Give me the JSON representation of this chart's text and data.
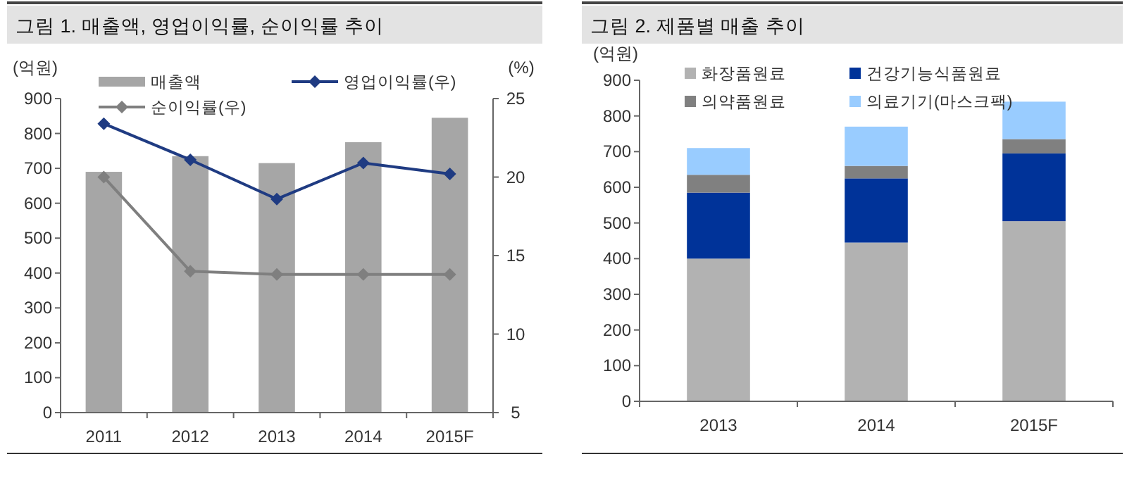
{
  "chart_data": [
    {
      "type": "bar",
      "title": "그림 1. 매출액, 영업이익률, 순이익률 추이",
      "ylabel": "(억원)",
      "y2label": "(%)",
      "categories": [
        "2011",
        "2012",
        "2013",
        "2014",
        "2015F"
      ],
      "series": [
        {
          "name": "매출액",
          "color": "#a6a6a6",
          "values": [
            690,
            735,
            715,
            775,
            845
          ]
        },
        {
          "name": "영업이익률(우)",
          "type": "line",
          "axis": "y2",
          "color": "#1f3b82",
          "values": [
            23.4,
            21.1,
            18.6,
            20.9,
            20.2
          ]
        },
        {
          "name": "순이익률(우)",
          "type": "line",
          "axis": "y2",
          "color": "#7f7f7f",
          "values": [
            20.0,
            14.0,
            13.8,
            13.8,
            13.8
          ]
        }
      ],
      "ylim": [
        0,
        900
      ],
      "yticks": [
        0,
        100,
        200,
        300,
        400,
        500,
        600,
        700,
        800,
        900
      ],
      "y2lim": [
        5,
        25
      ],
      "y2ticks": [
        5,
        10,
        15,
        20,
        25
      ],
      "legend": "top",
      "marker": "diamond"
    },
    {
      "type": "bar",
      "title": "그림 2. 제품별 매출 추이",
      "ylabel": "(억원)",
      "categories": [
        "2013",
        "2014",
        "2015F"
      ],
      "stacked": true,
      "series": [
        {
          "name": "화장품원료",
          "color": "#b2b2b2",
          "values": [
            400,
            445,
            505
          ]
        },
        {
          "name": "건강기능식품원료",
          "color": "#003399",
          "values": [
            185,
            180,
            190
          ]
        },
        {
          "name": "의약품원료",
          "color": "#808080",
          "values": [
            50,
            35,
            40
          ]
        },
        {
          "name": "의료기기(마스크팩)",
          "color": "#99ccff",
          "values": [
            75,
            110,
            105
          ]
        }
      ],
      "ylim": [
        0,
        900
      ],
      "yticks": [
        0,
        100,
        200,
        300,
        400,
        500,
        600,
        700,
        800,
        900
      ],
      "legend": "top"
    }
  ]
}
